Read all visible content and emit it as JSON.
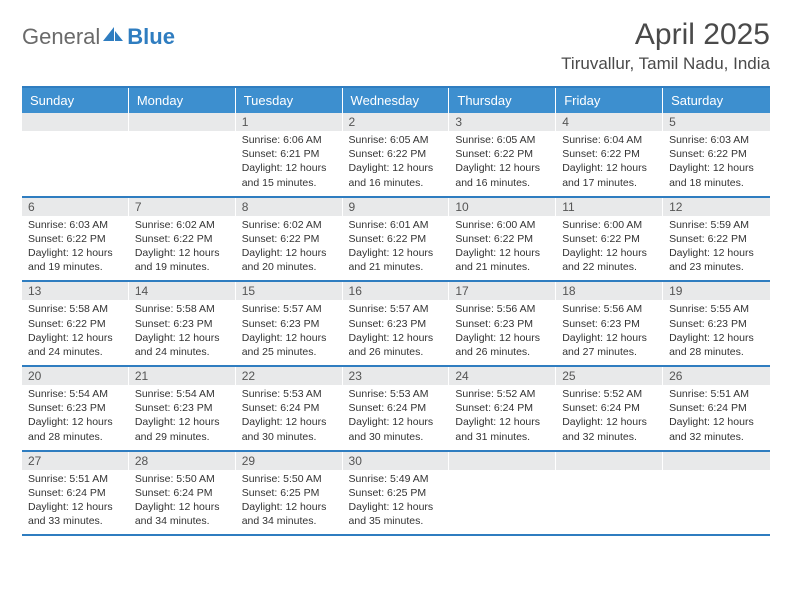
{
  "logo": {
    "word1": "General",
    "word2": "Blue"
  },
  "title": "April 2025",
  "location": "Tiruvallur, Tamil Nadu, India",
  "colors": {
    "brand": "#2f7dc0",
    "header_bg": "#3d8fcf",
    "header_text": "#ffffff",
    "daynum_bg": "#e8e9ea",
    "text": "#333333",
    "logo_gray": "#6a6a6a"
  },
  "day_headers": [
    "Sunday",
    "Monday",
    "Tuesday",
    "Wednesday",
    "Thursday",
    "Friday",
    "Saturday"
  ],
  "weeks": [
    [
      {
        "n": "",
        "sr": "",
        "ss": "",
        "dl": ""
      },
      {
        "n": "",
        "sr": "",
        "ss": "",
        "dl": ""
      },
      {
        "n": "1",
        "sr": "Sunrise: 6:06 AM",
        "ss": "Sunset: 6:21 PM",
        "dl": "Daylight: 12 hours and 15 minutes."
      },
      {
        "n": "2",
        "sr": "Sunrise: 6:05 AM",
        "ss": "Sunset: 6:22 PM",
        "dl": "Daylight: 12 hours and 16 minutes."
      },
      {
        "n": "3",
        "sr": "Sunrise: 6:05 AM",
        "ss": "Sunset: 6:22 PM",
        "dl": "Daylight: 12 hours and 16 minutes."
      },
      {
        "n": "4",
        "sr": "Sunrise: 6:04 AM",
        "ss": "Sunset: 6:22 PM",
        "dl": "Daylight: 12 hours and 17 minutes."
      },
      {
        "n": "5",
        "sr": "Sunrise: 6:03 AM",
        "ss": "Sunset: 6:22 PM",
        "dl": "Daylight: 12 hours and 18 minutes."
      }
    ],
    [
      {
        "n": "6",
        "sr": "Sunrise: 6:03 AM",
        "ss": "Sunset: 6:22 PM",
        "dl": "Daylight: 12 hours and 19 minutes."
      },
      {
        "n": "7",
        "sr": "Sunrise: 6:02 AM",
        "ss": "Sunset: 6:22 PM",
        "dl": "Daylight: 12 hours and 19 minutes."
      },
      {
        "n": "8",
        "sr": "Sunrise: 6:02 AM",
        "ss": "Sunset: 6:22 PM",
        "dl": "Daylight: 12 hours and 20 minutes."
      },
      {
        "n": "9",
        "sr": "Sunrise: 6:01 AM",
        "ss": "Sunset: 6:22 PM",
        "dl": "Daylight: 12 hours and 21 minutes."
      },
      {
        "n": "10",
        "sr": "Sunrise: 6:00 AM",
        "ss": "Sunset: 6:22 PM",
        "dl": "Daylight: 12 hours and 21 minutes."
      },
      {
        "n": "11",
        "sr": "Sunrise: 6:00 AM",
        "ss": "Sunset: 6:22 PM",
        "dl": "Daylight: 12 hours and 22 minutes."
      },
      {
        "n": "12",
        "sr": "Sunrise: 5:59 AM",
        "ss": "Sunset: 6:22 PM",
        "dl": "Daylight: 12 hours and 23 minutes."
      }
    ],
    [
      {
        "n": "13",
        "sr": "Sunrise: 5:58 AM",
        "ss": "Sunset: 6:22 PM",
        "dl": "Daylight: 12 hours and 24 minutes."
      },
      {
        "n": "14",
        "sr": "Sunrise: 5:58 AM",
        "ss": "Sunset: 6:23 PM",
        "dl": "Daylight: 12 hours and 24 minutes."
      },
      {
        "n": "15",
        "sr": "Sunrise: 5:57 AM",
        "ss": "Sunset: 6:23 PM",
        "dl": "Daylight: 12 hours and 25 minutes."
      },
      {
        "n": "16",
        "sr": "Sunrise: 5:57 AM",
        "ss": "Sunset: 6:23 PM",
        "dl": "Daylight: 12 hours and 26 minutes."
      },
      {
        "n": "17",
        "sr": "Sunrise: 5:56 AM",
        "ss": "Sunset: 6:23 PM",
        "dl": "Daylight: 12 hours and 26 minutes."
      },
      {
        "n": "18",
        "sr": "Sunrise: 5:56 AM",
        "ss": "Sunset: 6:23 PM",
        "dl": "Daylight: 12 hours and 27 minutes."
      },
      {
        "n": "19",
        "sr": "Sunrise: 5:55 AM",
        "ss": "Sunset: 6:23 PM",
        "dl": "Daylight: 12 hours and 28 minutes."
      }
    ],
    [
      {
        "n": "20",
        "sr": "Sunrise: 5:54 AM",
        "ss": "Sunset: 6:23 PM",
        "dl": "Daylight: 12 hours and 28 minutes."
      },
      {
        "n": "21",
        "sr": "Sunrise: 5:54 AM",
        "ss": "Sunset: 6:23 PM",
        "dl": "Daylight: 12 hours and 29 minutes."
      },
      {
        "n": "22",
        "sr": "Sunrise: 5:53 AM",
        "ss": "Sunset: 6:24 PM",
        "dl": "Daylight: 12 hours and 30 minutes."
      },
      {
        "n": "23",
        "sr": "Sunrise: 5:53 AM",
        "ss": "Sunset: 6:24 PM",
        "dl": "Daylight: 12 hours and 30 minutes."
      },
      {
        "n": "24",
        "sr": "Sunrise: 5:52 AM",
        "ss": "Sunset: 6:24 PM",
        "dl": "Daylight: 12 hours and 31 minutes."
      },
      {
        "n": "25",
        "sr": "Sunrise: 5:52 AM",
        "ss": "Sunset: 6:24 PM",
        "dl": "Daylight: 12 hours and 32 minutes."
      },
      {
        "n": "26",
        "sr": "Sunrise: 5:51 AM",
        "ss": "Sunset: 6:24 PM",
        "dl": "Daylight: 12 hours and 32 minutes."
      }
    ],
    [
      {
        "n": "27",
        "sr": "Sunrise: 5:51 AM",
        "ss": "Sunset: 6:24 PM",
        "dl": "Daylight: 12 hours and 33 minutes."
      },
      {
        "n": "28",
        "sr": "Sunrise: 5:50 AM",
        "ss": "Sunset: 6:24 PM",
        "dl": "Daylight: 12 hours and 34 minutes."
      },
      {
        "n": "29",
        "sr": "Sunrise: 5:50 AM",
        "ss": "Sunset: 6:25 PM",
        "dl": "Daylight: 12 hours and 34 minutes."
      },
      {
        "n": "30",
        "sr": "Sunrise: 5:49 AM",
        "ss": "Sunset: 6:25 PM",
        "dl": "Daylight: 12 hours and 35 minutes."
      },
      {
        "n": "",
        "sr": "",
        "ss": "",
        "dl": ""
      },
      {
        "n": "",
        "sr": "",
        "ss": "",
        "dl": ""
      },
      {
        "n": "",
        "sr": "",
        "ss": "",
        "dl": ""
      }
    ]
  ]
}
